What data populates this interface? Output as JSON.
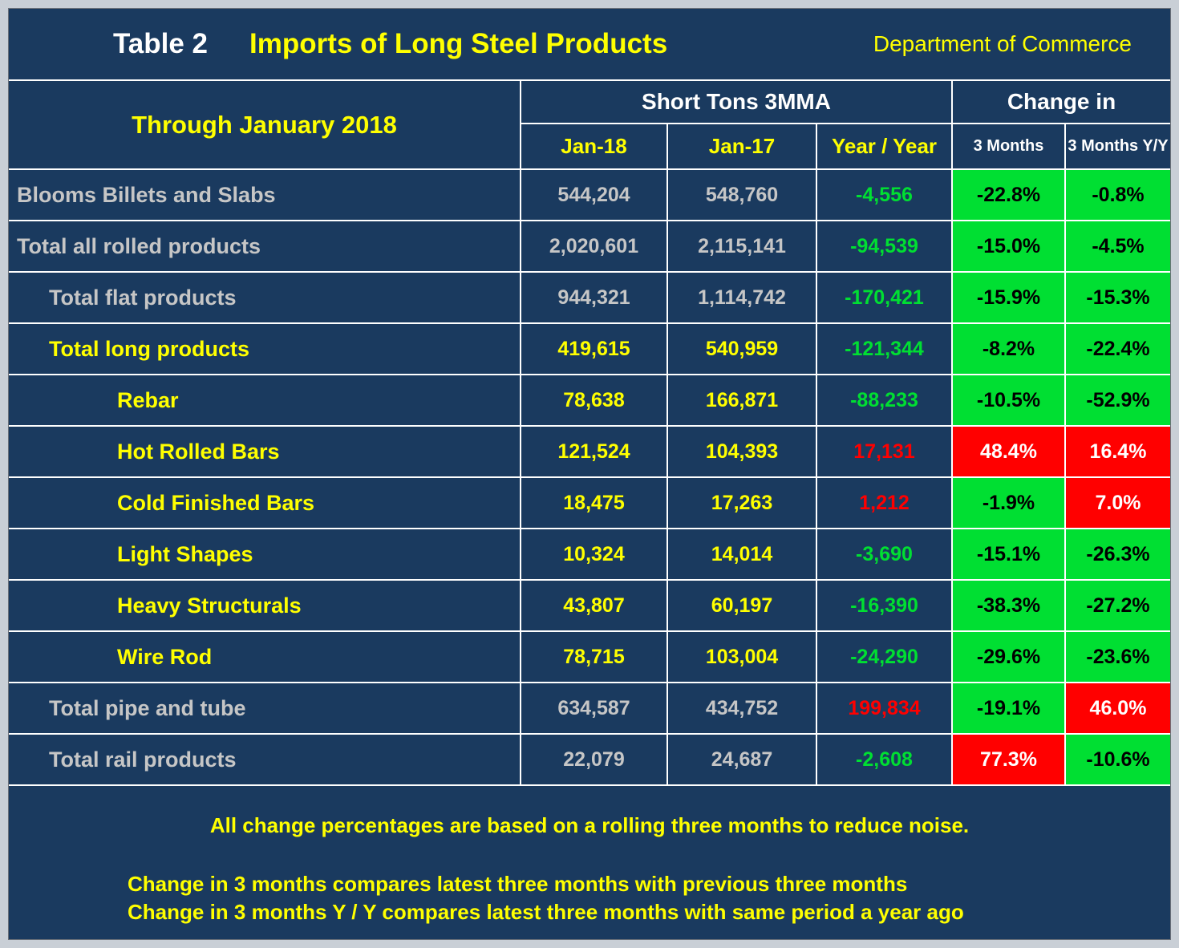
{
  "header": {
    "table_label": "Table 2",
    "title": "Imports of Long Steel Products",
    "source": "Department of Commerce",
    "period": "Through January 2018",
    "group_tons": "Short Tons 3MMA",
    "group_change": "Change in",
    "col_jan18": "Jan-18",
    "col_jan17": "Jan-17",
    "col_yoy": "Year / Year",
    "col_3m": "3 Months",
    "col_3myy": "3 Months Y/Y"
  },
  "colors": {
    "background_navy": "#1a3a5f",
    "accent_yellow": "#ffff00",
    "label_gray": "#c6c6c6",
    "positive_red": "#ff0000",
    "negative_green": "#00df32",
    "grid_white": "#ffffff"
  },
  "rows": [
    {
      "label": "Blooms Billets and Slabs",
      "jan18": "544,204",
      "jan17": "548,760",
      "yoy": "-4,556",
      "m3": "-22.8%",
      "m3y": "-0.8%",
      "label_color": "#c6c6c6",
      "num_color": "#c6c6c6",
      "yoy_color": "#00df32",
      "m3_bg": "#00df32",
      "m3_fg": "#000000",
      "m3y_bg": "#00df32",
      "m3y_fg": "#000000"
    },
    {
      "label": "Total all rolled products",
      "jan18": "2,020,601",
      "jan17": "2,115,141",
      "yoy": "-94,539",
      "m3": "-15.0%",
      "m3y": "-4.5%",
      "label_color": "#c6c6c6",
      "num_color": "#c6c6c6",
      "yoy_color": "#00df32",
      "m3_bg": "#00df32",
      "m3_fg": "#000000",
      "m3y_bg": "#00df32",
      "m3y_fg": "#000000"
    },
    {
      "label": "Total flat products",
      "jan18": "944,321",
      "jan17": "1,114,742",
      "yoy": "-170,421",
      "m3": "-15.9%",
      "m3y": "-15.3%",
      "label_color": "#c6c6c6",
      "num_color": "#c6c6c6",
      "yoy_color": "#00df32",
      "m3_bg": "#00df32",
      "m3_fg": "#000000",
      "m3y_bg": "#00df32",
      "m3y_fg": "#000000"
    },
    {
      "label": "Total long products",
      "jan18": "419,615",
      "jan17": "540,959",
      "yoy": "-121,344",
      "m3": "-8.2%",
      "m3y": "-22.4%",
      "label_color": "#ffff00",
      "num_color": "#ffff00",
      "yoy_color": "#00df32",
      "m3_bg": "#00df32",
      "m3_fg": "#000000",
      "m3y_bg": "#00df32",
      "m3y_fg": "#000000"
    },
    {
      "label": "Rebar",
      "jan18": "78,638",
      "jan17": "166,871",
      "yoy": "-88,233",
      "m3": "-10.5%",
      "m3y": "-52.9%",
      "label_color": "#ffff00",
      "num_color": "#ffff00",
      "yoy_color": "#00df32",
      "m3_bg": "#00df32",
      "m3_fg": "#000000",
      "m3y_bg": "#00df32",
      "m3y_fg": "#000000"
    },
    {
      "label": "Hot Rolled Bars",
      "jan18": "121,524",
      "jan17": "104,393",
      "yoy": "17,131",
      "m3": "48.4%",
      "m3y": "16.4%",
      "label_color": "#ffff00",
      "num_color": "#ffff00",
      "yoy_color": "#ff0000",
      "m3_bg": "#ff0000",
      "m3_fg": "#ffffff",
      "m3y_bg": "#ff0000",
      "m3y_fg": "#ffffff"
    },
    {
      "label": "Cold Finished Bars",
      "jan18": "18,475",
      "jan17": "17,263",
      "yoy": "1,212",
      "m3": "-1.9%",
      "m3y": "7.0%",
      "label_color": "#ffff00",
      "num_color": "#ffff00",
      "yoy_color": "#ff0000",
      "m3_bg": "#00df32",
      "m3_fg": "#000000",
      "m3y_bg": "#ff0000",
      "m3y_fg": "#ffffff"
    },
    {
      "label": "Light Shapes",
      "jan18": "10,324",
      "jan17": "14,014",
      "yoy": "-3,690",
      "m3": "-15.1%",
      "m3y": "-26.3%",
      "label_color": "#ffff00",
      "num_color": "#ffff00",
      "yoy_color": "#00df32",
      "m3_bg": "#00df32",
      "m3_fg": "#000000",
      "m3y_bg": "#00df32",
      "m3y_fg": "#000000"
    },
    {
      "label": "Heavy Structurals",
      "jan18": "43,807",
      "jan17": "60,197",
      "yoy": "-16,390",
      "m3": "-38.3%",
      "m3y": "-27.2%",
      "label_color": "#ffff00",
      "num_color": "#ffff00",
      "yoy_color": "#00df32",
      "m3_bg": "#00df32",
      "m3_fg": "#000000",
      "m3y_bg": "#00df32",
      "m3y_fg": "#000000"
    },
    {
      "label": "Wire Rod",
      "jan18": "78,715",
      "jan17": "103,004",
      "yoy": "-24,290",
      "m3": "-29.6%",
      "m3y": "-23.6%",
      "label_color": "#ffff00",
      "num_color": "#ffff00",
      "yoy_color": "#00df32",
      "m3_bg": "#00df32",
      "m3_fg": "#000000",
      "m3y_bg": "#00df32",
      "m3y_fg": "#000000"
    },
    {
      "label": "Total pipe and tube",
      "jan18": "634,587",
      "jan17": "434,752",
      "yoy": "199,834",
      "m3": "-19.1%",
      "m3y": "46.0%",
      "label_color": "#c6c6c6",
      "num_color": "#c6c6c6",
      "yoy_color": "#ff0000",
      "m3_bg": "#00df32",
      "m3_fg": "#000000",
      "m3y_bg": "#ff0000",
      "m3y_fg": "#ffffff"
    },
    {
      "label": "Total rail products",
      "jan18": "22,079",
      "jan17": "24,687",
      "yoy": "-2,608",
      "m3": "77.3%",
      "m3y": "-10.6%",
      "label_color": "#c6c6c6",
      "num_color": "#c6c6c6",
      "yoy_color": "#00df32",
      "m3_bg": "#ff0000",
      "m3_fg": "#ffffff",
      "m3y_bg": "#00df32",
      "m3y_fg": "#000000"
    }
  ],
  "footnotes": {
    "note1": "All change percentages are based on a rolling three months to reduce noise.",
    "note2": "Change in 3 months compares latest three months with previous three months",
    "note3": "Change in 3 months  Y / Y compares latest three months with same period a year ago"
  },
  "chart_data": {
    "type": "table",
    "title": "Imports of Long Steel Products",
    "subtitle": "Through January 2018",
    "source": "Department of Commerce",
    "units": "Short Tons 3MMA",
    "columns": [
      "Jan-18",
      "Jan-17",
      "Year / Year",
      "3 Months",
      "3 Months Y/Y"
    ],
    "rows": [
      {
        "label": "Blooms Billets and Slabs",
        "jan18": 544204,
        "jan17": 548760,
        "year_year": -4556,
        "chg_3m_pct": -22.8,
        "chg_3m_yy_pct": -0.8
      },
      {
        "label": "Total all rolled products",
        "jan18": 2020601,
        "jan17": 2115141,
        "year_year": -94539,
        "chg_3m_pct": -15.0,
        "chg_3m_yy_pct": -4.5
      },
      {
        "label": "Total flat products",
        "jan18": 944321,
        "jan17": 1114742,
        "year_year": -170421,
        "chg_3m_pct": -15.9,
        "chg_3m_yy_pct": -15.3
      },
      {
        "label": "Total long products",
        "jan18": 419615,
        "jan17": 540959,
        "year_year": -121344,
        "chg_3m_pct": -8.2,
        "chg_3m_yy_pct": -22.4
      },
      {
        "label": "Rebar",
        "jan18": 78638,
        "jan17": 166871,
        "year_year": -88233,
        "chg_3m_pct": -10.5,
        "chg_3m_yy_pct": -52.9
      },
      {
        "label": "Hot Rolled Bars",
        "jan18": 121524,
        "jan17": 104393,
        "year_year": 17131,
        "chg_3m_pct": 48.4,
        "chg_3m_yy_pct": 16.4
      },
      {
        "label": "Cold Finished Bars",
        "jan18": 18475,
        "jan17": 17263,
        "year_year": 1212,
        "chg_3m_pct": -1.9,
        "chg_3m_yy_pct": 7.0
      },
      {
        "label": "Light Shapes",
        "jan18": 10324,
        "jan17": 14014,
        "year_year": -3690,
        "chg_3m_pct": -15.1,
        "chg_3m_yy_pct": -26.3
      },
      {
        "label": "Heavy Structurals",
        "jan18": 43807,
        "jan17": 60197,
        "year_year": -16390,
        "chg_3m_pct": -38.3,
        "chg_3m_yy_pct": -27.2
      },
      {
        "label": "Wire Rod",
        "jan18": 78715,
        "jan17": 103004,
        "year_year": -24290,
        "chg_3m_pct": -29.6,
        "chg_3m_yy_pct": -23.6
      },
      {
        "label": "Total pipe and tube",
        "jan18": 634587,
        "jan17": 434752,
        "year_year": 199834,
        "chg_3m_pct": -19.1,
        "chg_3m_yy_pct": 46.0
      },
      {
        "label": "Total rail products",
        "jan18": 22079,
        "jan17": 24687,
        "year_year": -2608,
        "chg_3m_pct": 77.3,
        "chg_3m_yy_pct": -10.6
      }
    ],
    "legend": {
      "green_cell": "decrease / negative change",
      "red_cell": "increase / positive change"
    }
  }
}
